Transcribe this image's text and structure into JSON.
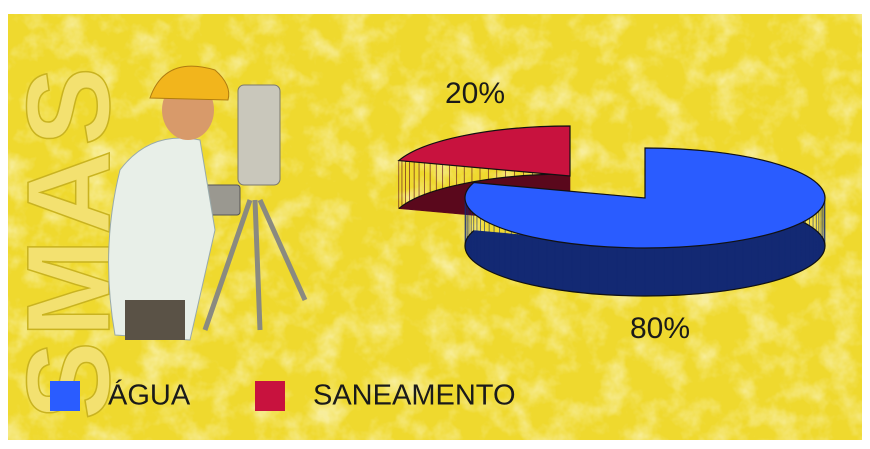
{
  "chart_data": {
    "type": "pie3d",
    "watermark": "SMAS",
    "categories": [
      "ÁGUA",
      "SANEAMENTO"
    ],
    "values": [
      80,
      20
    ],
    "value_labels": [
      "80%",
      "20%"
    ],
    "colors": [
      "#2a5cff",
      "#c8123e"
    ],
    "legend": "bottom-left"
  }
}
